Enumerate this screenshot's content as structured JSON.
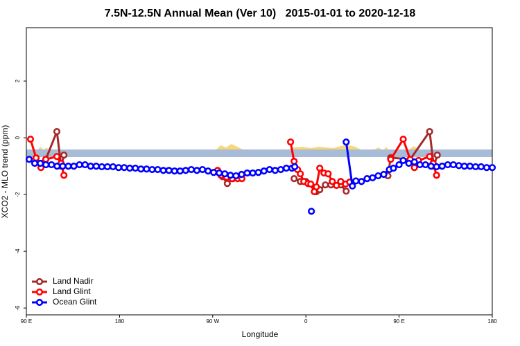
{
  "chart_data": {
    "type": "line",
    "title": "7.5N-12.5N Annual Mean (Ver 10)   2015-01-01 to 2020-12-18",
    "x_label": "Longitude",
    "y_label": "XCO2 - MLO trend (ppm)",
    "xlim": [
      90,
      540
    ],
    "ylim": [
      -6.24,
      3.88
    ],
    "xticks": [
      {
        "value": 90,
        "label": "90 E"
      },
      {
        "value": 180,
        "label": "180"
      },
      {
        "value": 270,
        "label": "90 W"
      },
      {
        "value": 360,
        "label": "0"
      },
      {
        "value": 450,
        "label": "90 E"
      },
      {
        "value": 540,
        "label": "180"
      }
    ],
    "yticks": [
      -6,
      -4,
      -2,
      0,
      2
    ],
    "legend": "bottom-left",
    "series": [
      {
        "name": "Land Nadir",
        "color": "#a52a2a",
        "x": [
          99.4,
          104.8,
          108.8,
          119.5,
          123.6,
          126.3,
          null,
          274.7,
          279.4,
          284.1,
          289.5,
          294.2,
          null,
          348.6,
          354.6,
          360.0,
          370.1,
          373.4,
          378.8,
          384.2,
          393.6,
          398.9,
          null,
          439.2,
          441.9,
          460.7,
          479.5,
          483.5,
          486.9
        ],
        "values": [
          -0.71,
          -0.9,
          -0.76,
          0.22,
          -1.0,
          -0.61,
          null,
          -1.2,
          -1.37,
          -1.61,
          -1.44,
          -1.37,
          null,
          -1.44,
          -1.54,
          -1.54,
          -1.9,
          -1.83,
          -1.66,
          -1.66,
          -1.66,
          -1.88,
          null,
          -1.34,
          -0.7,
          -0.76,
          0.22,
          -1.0,
          -0.61
        ]
      },
      {
        "name": "Land Glint",
        "color": "#ff0000",
        "x": [
          94.0,
          99.4,
          104.1,
          108.8,
          119.5,
          123.6,
          126.3,
          null,
          274.7,
          278.0,
          283.4,
          288.8,
          294.2,
          298.2,
          null,
          345.2,
          348.6,
          351.9,
          354.6,
          358.0,
          362.0,
          364.7,
          368.1,
          370.1,
          373.4,
          377.5,
          381.5,
          385.5,
          389.5,
          393.6,
          398.3,
          402.3,
          null,
          441.9,
          454.0,
          460.7,
          464.8,
          468.8,
          479.5,
          482.9,
          486.2
        ],
        "values": [
          -0.05,
          -0.71,
          -1.05,
          -0.76,
          -0.66,
          -0.9,
          -1.32,
          null,
          -1.15,
          -1.32,
          -1.39,
          -1.44,
          -1.44,
          -1.44,
          null,
          -0.15,
          -0.83,
          -1.12,
          -1.27,
          -1.54,
          -1.61,
          -1.63,
          -1.9,
          -1.73,
          -1.07,
          -1.24,
          -1.27,
          -1.54,
          -1.68,
          -1.54,
          -1.63,
          -1.56,
          null,
          -0.76,
          -0.05,
          -0.76,
          -1.05,
          -0.8,
          -0.66,
          -0.9,
          -1.32
        ]
      },
      {
        "name": "Ocean Glint",
        "color": "#0000ff",
        "x": [
          92.7,
          98.1,
          103.5,
          108.9,
          114.3,
          119.7,
          125.1,
          130.5,
          135.9,
          141.3,
          146.7,
          152.1,
          157.5,
          162.9,
          168.3,
          173.7,
          179.1,
          184.5,
          189.9,
          195.3,
          200.7,
          206.1,
          211.5,
          216.9,
          222.3,
          227.7,
          233.1,
          238.5,
          243.9,
          249.3,
          254.7,
          260.1,
          265.5,
          270.9,
          276.3,
          281.7,
          287.1,
          292.5,
          297.9,
          303.3,
          308.7,
          314.1,
          319.5,
          324.9,
          330.3,
          335.7,
          341.1,
          346.5,
          349.2,
          null,
          365.3,
          null,
          398.9,
          404.9,
          408.3,
          413.7,
          419.1,
          424.4,
          429.8,
          435.2,
          440.6,
          444.6,
          450.0,
          454.0,
          459.4,
          464.8,
          470.1,
          475.5,
          480.9,
          486.2,
          491.6,
          497.0,
          502.4,
          507.7,
          513.1,
          518.5,
          523.9,
          529.2,
          534.6,
          540.0
        ],
        "values": [
          -0.76,
          -0.9,
          -0.9,
          -0.95,
          -0.95,
          -1.0,
          -1.0,
          -1.0,
          -1.0,
          -0.95,
          -0.95,
          -1.0,
          -1.0,
          -1.02,
          -1.02,
          -1.02,
          -1.05,
          -1.05,
          -1.07,
          -1.07,
          -1.1,
          -1.1,
          -1.12,
          -1.12,
          -1.15,
          -1.15,
          -1.17,
          -1.17,
          -1.15,
          -1.12,
          -1.15,
          -1.12,
          -1.17,
          -1.22,
          -1.24,
          -1.27,
          -1.32,
          -1.34,
          -1.29,
          -1.24,
          -1.24,
          -1.22,
          -1.17,
          -1.12,
          -1.15,
          -1.12,
          -1.07,
          -1.07,
          -1.02,
          null,
          -2.59,
          null,
          -0.15,
          -1.7,
          -1.52,
          -1.54,
          -1.44,
          -1.41,
          -1.34,
          -1.29,
          -1.12,
          -1.07,
          -0.95,
          -0.8,
          -0.9,
          -0.85,
          -0.95,
          -0.95,
          -1.0,
          -1.02,
          -1.0,
          -0.95,
          -0.95,
          -0.98,
          -1.0,
          -1.0,
          -1.02,
          -1.02,
          -1.05,
          -1.05
        ]
      }
    ]
  }
}
